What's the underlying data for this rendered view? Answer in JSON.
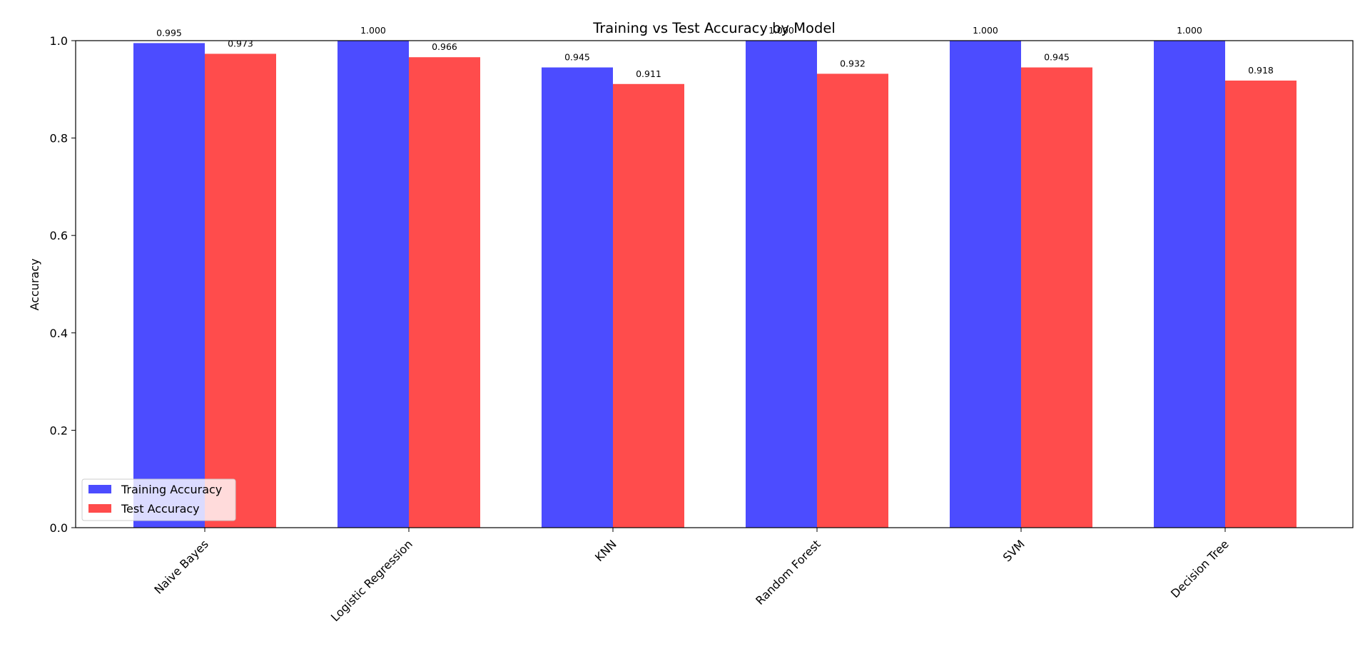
{
  "chart_data": {
    "type": "bar",
    "title": "Training vs Test Accuracy by Model",
    "xlabel": "",
    "ylabel": "Accuracy",
    "ylim": [
      0,
      1.0
    ],
    "yticks": [
      "0.0",
      "0.2",
      "0.4",
      "0.6",
      "0.8",
      "1.0"
    ],
    "categories": [
      "Naive Bayes",
      "Logistic Regression",
      "KNN",
      "Random Forest",
      "SVM",
      "Decision Tree"
    ],
    "series": [
      {
        "name": "Training Accuracy",
        "color": "#4c4cff",
        "values": [
          0.995,
          1.0,
          0.945,
          1.0,
          1.0,
          1.0
        ],
        "labels": [
          "0.995",
          "1.000",
          "0.945",
          "1.000",
          "1.000",
          "1.000"
        ]
      },
      {
        "name": "Test Accuracy",
        "color": "#ff4c4c",
        "values": [
          0.973,
          0.966,
          0.911,
          0.932,
          0.945,
          0.918
        ],
        "labels": [
          "0.973",
          "0.966",
          "0.911",
          "0.932",
          "0.945",
          "0.918"
        ]
      }
    ],
    "legend_position": "lower-left",
    "grid": false
  }
}
